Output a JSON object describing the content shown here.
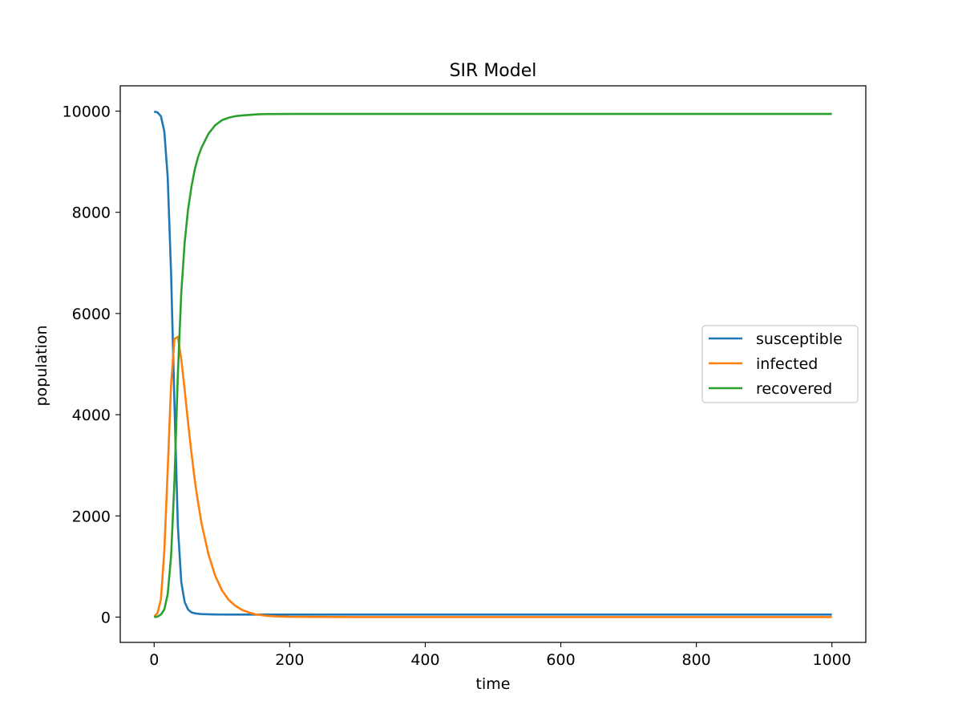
{
  "chart_data": {
    "type": "line",
    "title": "SIR Model",
    "xlabel": "time",
    "ylabel": "population",
    "xlim": [
      -50,
      1050
    ],
    "ylim": [
      -500,
      10500
    ],
    "xticks": [
      0,
      200,
      400,
      600,
      800,
      1000
    ],
    "xtick_labels": [
      "0",
      "200",
      "400",
      "600",
      "800",
      "1000"
    ],
    "yticks": [
      0,
      2000,
      4000,
      6000,
      8000,
      10000
    ],
    "ytick_labels": [
      "0",
      "2000",
      "4000",
      "6000",
      "8000",
      "10000"
    ],
    "grid": false,
    "legend_position": "center-right",
    "x": [
      0,
      5,
      10,
      15,
      20,
      25,
      30,
      35,
      40,
      45,
      50,
      55,
      60,
      65,
      70,
      80,
      90,
      100,
      110,
      120,
      130,
      140,
      150,
      160,
      170,
      180,
      200,
      300,
      400,
      500,
      600,
      700,
      800,
      900,
      1000
    ],
    "series": [
      {
        "name": "susceptible",
        "color": "#1f77b4",
        "values": [
          9990,
          9975,
          9900,
          9600,
          8700,
          6800,
          4200,
          1800,
          700,
          300,
          150,
          95,
          75,
          65,
          60,
          55,
          52,
          51,
          50,
          50,
          50,
          50,
          50,
          50,
          50,
          50,
          50,
          50,
          50,
          50,
          50,
          50,
          50,
          50,
          50
        ]
      },
      {
        "name": "infected",
        "color": "#ff7f0e",
        "values": [
          10,
          80,
          350,
          1300,
          2900,
          4600,
          5500,
          5540,
          5100,
          4500,
          3850,
          3250,
          2700,
          2250,
          1850,
          1250,
          820,
          530,
          340,
          220,
          140,
          90,
          55,
          35,
          22,
          14,
          6,
          0,
          0,
          0,
          0,
          0,
          0,
          0,
          0
        ]
      },
      {
        "name": "recovered",
        "color": "#2ca02c",
        "values": [
          0,
          10,
          50,
          150,
          450,
          1200,
          2700,
          4800,
          6400,
          7400,
          8050,
          8500,
          8850,
          9100,
          9280,
          9550,
          9720,
          9820,
          9870,
          9900,
          9915,
          9925,
          9935,
          9940,
          9942,
          9943,
          9944,
          9945,
          9945,
          9945,
          9945,
          9945,
          9945,
          9945,
          9945
        ]
      }
    ]
  }
}
